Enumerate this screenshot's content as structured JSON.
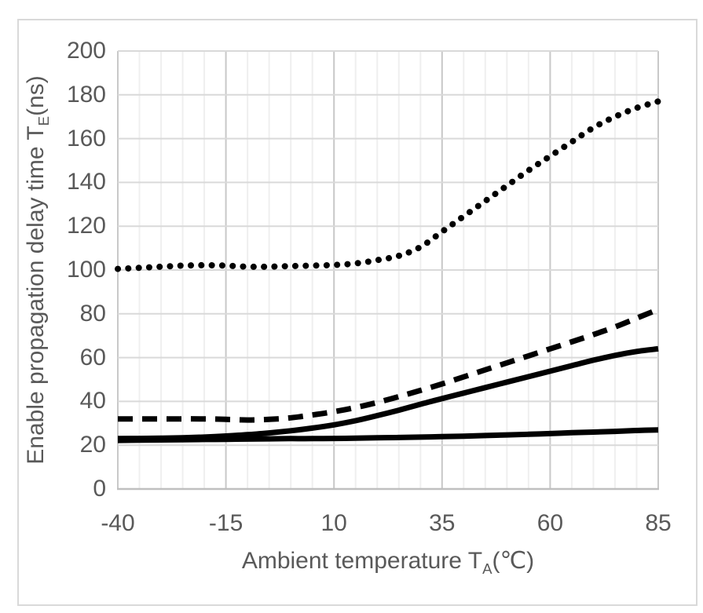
{
  "chart_data": {
    "type": "line",
    "title": "",
    "xlabel_parts": {
      "prefix": "Ambient temperature T",
      "sub": "A",
      "suffix": "(℃)"
    },
    "ylabel_parts": {
      "prefix": "Enable propagation delay time T",
      "sub": "E",
      "suffix": "(ns)"
    },
    "axes": {
      "x": {
        "min": -40,
        "max": 85,
        "ticks": [
          -40,
          -15,
          10,
          35,
          60,
          85
        ],
        "minor_step": 5
      },
      "y": {
        "min": 0,
        "max": 200,
        "ticks": [
          0,
          20,
          40,
          60,
          80,
          100,
          120,
          140,
          160,
          180,
          200
        ]
      }
    },
    "grid": {
      "horizontal_major": true,
      "vertical_major": true,
      "vertical_minor": true
    },
    "legend": "none",
    "x": [
      -40,
      -35,
      -30,
      -25,
      -20,
      -15,
      -10,
      -5,
      0,
      5,
      10,
      15,
      20,
      25,
      30,
      35,
      40,
      45,
      50,
      55,
      60,
      65,
      70,
      75,
      80,
      85
    ],
    "series": [
      {
        "name": "dotted-curve",
        "style": "dotted",
        "values": [
          100.5,
          101,
          101.5,
          102,
          102.2,
          102,
          101.5,
          101.5,
          101.8,
          102,
          102.3,
          103,
          104.5,
          106.5,
          110.5,
          117.5,
          124.5,
          131.5,
          138.5,
          145.5,
          152,
          158.5,
          165,
          170,
          174,
          177
        ]
      },
      {
        "name": "dashed-curve",
        "style": "dashed",
        "values": [
          32,
          32,
          32,
          32,
          32,
          31.8,
          31.5,
          31.8,
          32.5,
          33.8,
          35.3,
          37.2,
          39.5,
          42.2,
          45,
          48,
          51.2,
          54.4,
          57.6,
          60.8,
          64,
          67.2,
          70.5,
          74,
          78,
          82
        ]
      },
      {
        "name": "solid-upper-curve",
        "style": "solid",
        "values": [
          23,
          23.1,
          23.2,
          23.4,
          23.7,
          24.2,
          24.8,
          25.6,
          26.6,
          27.8,
          29.3,
          31.2,
          33.5,
          36,
          38.7,
          41.3,
          43.8,
          46.3,
          48.8,
          51.3,
          53.8,
          56.3,
          58.8,
          61,
          62.8,
          64
        ]
      },
      {
        "name": "solid-lower-curve",
        "style": "solid",
        "values": [
          22.2,
          22.3,
          22.4,
          22.5,
          22.6,
          22.7,
          22.8,
          22.9,
          23,
          23,
          23.1,
          23.2,
          23.4,
          23.5,
          23.7,
          23.9,
          24.1,
          24.4,
          24.7,
          25,
          25.3,
          25.7,
          26,
          26.3,
          26.7,
          27
        ]
      }
    ],
    "colors": {
      "line": "#000000",
      "grid_major_h": "#d9d9d9",
      "grid_major_v": "#c9c9c9",
      "grid_minor_v": "#efefef",
      "axis_line": "#bfbfbf",
      "text": "#595959",
      "frame_border": "#d9d9d9",
      "background": "#ffffff"
    }
  }
}
